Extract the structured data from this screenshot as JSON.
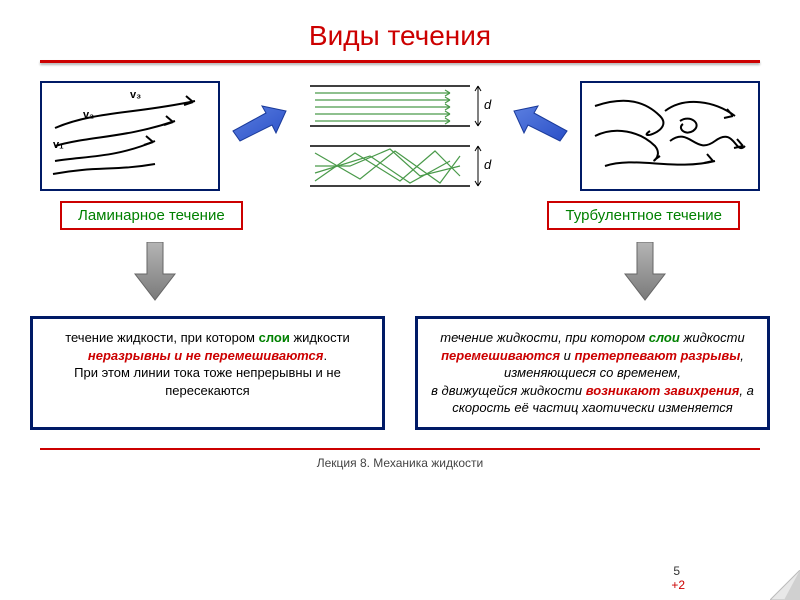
{
  "title": "Виды течения",
  "laminar": {
    "label": "Ламинарное течение",
    "def_pre": "течение жидкости, при котором ",
    "def_kw1": "слои",
    "def_mid": " жидкости",
    "def_kw2": "неразрывны и не перемешиваются",
    "def_post": ".\nПри этом линии тока тоже непрерывны и не пересекаются"
  },
  "turbulent": {
    "label": "Турбулентное течение",
    "def_pre": "течение жидкости, при котором ",
    "def_kw1": "слои",
    "def_mid1": " жидкости ",
    "def_kw2": "перемешиваются",
    "def_mid2": " и ",
    "def_kw3": "претерпевают разрывы",
    "def_mid3": ", изменяющиеся со временем,\nв движущейся жидкости ",
    "def_kw4": "возникают завихрения",
    "def_post": ", а скорость её частиц хаотически изменяется"
  },
  "diagram": {
    "v1": "v₁",
    "v2": "v₂",
    "v3": "v₃",
    "d": "d"
  },
  "footer": "Лекция 8. Механика жидкости",
  "page": "5",
  "extra": "+2",
  "colors": {
    "accent_red": "#cc0000",
    "green": "#008000",
    "navy": "#001a66",
    "blue_arrow": "#2a4fc7",
    "gray_arrow": "#8a8a8a",
    "flow_green": "#4a9a4a"
  }
}
